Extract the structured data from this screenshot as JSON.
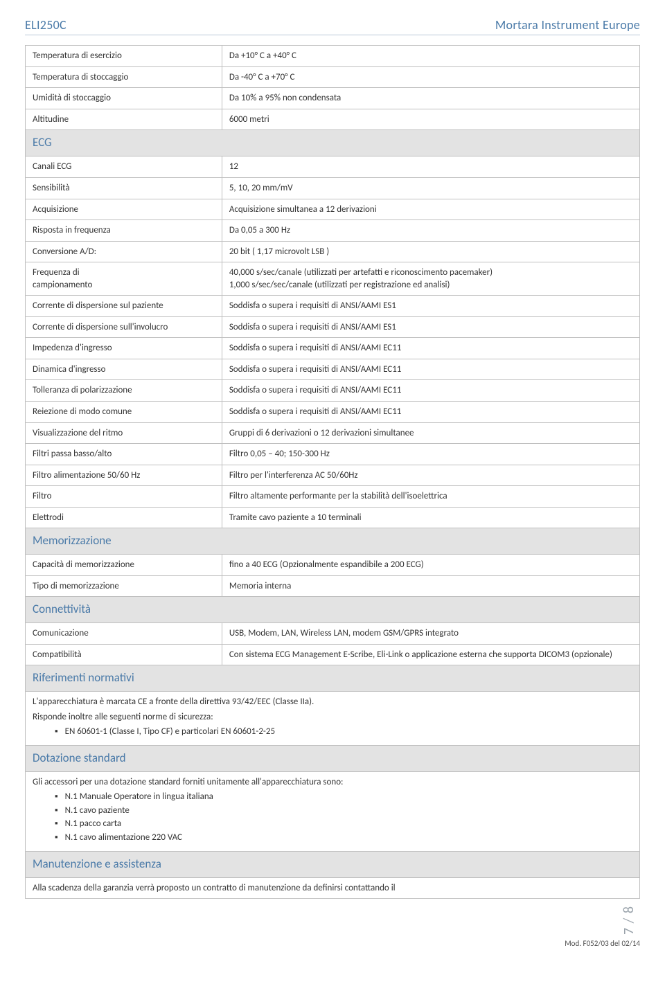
{
  "header": {
    "left": "ELI250C",
    "right": "Mortara Instrument Europe"
  },
  "rows_env": [
    {
      "label": "Temperatura di esercizio",
      "value": "Da +10° C a +40° C"
    },
    {
      "label": "Temperatura di stoccaggio",
      "value": "Da -40° C a +70° C"
    },
    {
      "label": "Umidità di stoccaggio",
      "value": "Da 10% a 95% non condensata"
    },
    {
      "label": "Altitudine",
      "value": "6000 metri"
    }
  ],
  "section_ecg": "ECG",
  "rows_ecg": [
    {
      "label": "Canali ECG",
      "value": "12"
    },
    {
      "label": "Sensibilità",
      "value": "5, 10, 20 mm/mV"
    },
    {
      "label": "Acquisizione",
      "value": "Acquisizione simultanea a 12 derivazioni"
    },
    {
      "label": "Risposta in frequenza",
      "value": "Da 0,05 a 300 Hz"
    },
    {
      "label": "Conversione A/D:",
      "value": "20 bit ( 1,17 microvolt LSB )"
    },
    {
      "label": "Frequenza di\ncampionamento",
      "value": "40,000 s/sec/canale (utilizzati per artefatti e riconoscimento pacemaker)\n1,000 s/sec/sec/canale (utilizzati per registrazione ed analisi)"
    },
    {
      "label": "Corrente di dispersione sul paziente",
      "value": "Soddisfa o supera i requisiti di ANSI/AAMI ES1"
    },
    {
      "label": "Corrente di dispersione sull'involucro",
      "value": "Soddisfa o supera i requisiti di ANSI/AAMI ES1"
    },
    {
      "label": "Impedenza d'ingresso",
      "value": "Soddisfa o supera i requisiti di ANSI/AAMI EC11"
    },
    {
      "label": "Dinamica d'ingresso",
      "value": "Soddisfa o supera i requisiti di ANSI/AAMI EC11"
    },
    {
      "label": "Tolleranza di polarizzazione",
      "value": "Soddisfa o supera i requisiti di ANSI/AAMI EC11"
    },
    {
      "label": "Reiezione di modo comune",
      "value": "Soddisfa o supera i requisiti di ANSI/AAMI EC11"
    },
    {
      "label": "Visualizzazione del ritmo",
      "value": "Gruppi di 6 derivazioni o 12 derivazioni simultanee"
    },
    {
      "label": "Filtri passa basso/alto",
      "value": "Filtro 0,05 – 40; 150-300 Hz"
    },
    {
      "label": "Filtro alimentazione  50/60 Hz",
      "value": "Filtro per l'interferenza AC 50/60Hz"
    },
    {
      "label": "Filtro",
      "value": "Filtro altamente performante per la stabilità dell'isoelettrica"
    },
    {
      "label": "Elettrodi",
      "value": "Tramite cavo paziente a 10 terminali"
    }
  ],
  "section_mem": "Memorizzazione",
  "rows_mem": [
    {
      "label": "Capacità di memorizzazione",
      "value": "fino a 40 ECG (Opzionalmente espandibile a 200 ECG)"
    },
    {
      "label": "Tipo di memorizzazione",
      "value": "Memoria interna"
    }
  ],
  "section_conn": "Connettività",
  "rows_conn": [
    {
      "label": "Comunicazione",
      "value": "USB, Modem, LAN, Wireless LAN, modem GSM/GPRS integrato"
    },
    {
      "label": "Compatibilità",
      "value": "Con sistema ECG Management E-Scribe, Eli-Link o applicazione esterna che supporta DICOM3 (opzionale)"
    }
  ],
  "section_ref": "Riferimenti normativi",
  "ref_body": {
    "line1": "L'apparecchiatura è marcata CE a fronte della direttiva 93/42/EEC (Classe IIa).",
    "line2": "Risponde inoltre alle seguenti norme di sicurezza:",
    "bullets": [
      "EN 60601-1 (Classe I, Tipo CF) e particolari EN 60601-2-25"
    ]
  },
  "section_dot": "Dotazione standard",
  "dot_body": {
    "line1": "Gli accessori per una dotazione standard forniti unitamente all'apparecchiatura sono:",
    "bullets": [
      "N.1 Manuale Operatore in lingua italiana",
      "N.1 cavo paziente",
      "N.1 pacco carta",
      "N.1 cavo alimentazione 220 VAC"
    ]
  },
  "section_man": "Manutenzione e assistenza",
  "man_body": {
    "line1": "Alla scadenza della garanzia verrà proposto un contratto di manutenzione da definirsi contattando il"
  },
  "footer": {
    "pagecount": "7 / 8",
    "mod": "Mod. F052/03 del 02/14"
  }
}
